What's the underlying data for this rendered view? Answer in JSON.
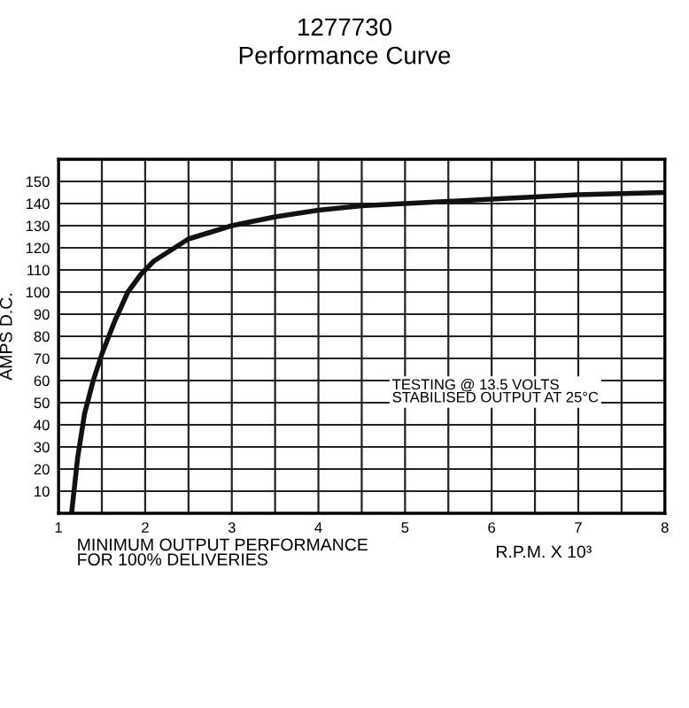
{
  "chart_data": {
    "type": "line",
    "title": "1277730",
    "subtitle": "Performance Curve",
    "xlabel": "R.P.M. X 10³",
    "ylabel": "AMPS D.C.",
    "x": [
      1.15,
      1.22,
      1.3,
      1.4,
      1.5,
      1.65,
      1.8,
      1.95,
      2.1,
      2.3,
      2.5,
      2.75,
      3.0,
      3.5,
      4.0,
      4.5,
      5.0,
      5.5,
      6.0,
      6.5,
      7.0,
      7.5,
      8.0
    ],
    "series": [
      {
        "color": "#111111",
        "values": [
          0,
          25,
          45,
          60,
          72,
          87,
          100,
          108,
          114,
          119,
          124,
          127,
          130,
          134,
          137,
          139,
          140,
          141,
          142,
          143,
          144,
          144.5,
          145
        ]
      }
    ],
    "xlim": [
      1,
      8
    ],
    "ylim": [
      0,
      160
    ],
    "xticks": [
      1,
      {
        "value": 1.5,
        "label": null
      },
      2,
      {
        "value": 2.5,
        "label": null
      },
      3,
      {
        "value": 3.5,
        "label": null
      },
      4,
      {
        "value": 4.5,
        "label": null
      },
      5,
      {
        "value": 5.5,
        "label": null
      },
      6,
      {
        "value": 6.5,
        "label": null
      },
      7,
      {
        "value": 7.5,
        "label": null
      },
      8
    ],
    "yticks": [
      {
        "value": 0,
        "label": null
      },
      10,
      20,
      30,
      40,
      50,
      60,
      70,
      80,
      90,
      100,
      110,
      120,
      130,
      140,
      150,
      {
        "value": 160,
        "label": null
      }
    ],
    "grid": true,
    "marker": "none",
    "line_style": "solid",
    "annotations": [
      "TESTING @ 13.5 VOLTS\nSTABILISED OUTPUT AT 25°C",
      "MINIMUM OUTPUT PERFORMANCE\nFOR 100% DELIVERIES"
    ]
  }
}
